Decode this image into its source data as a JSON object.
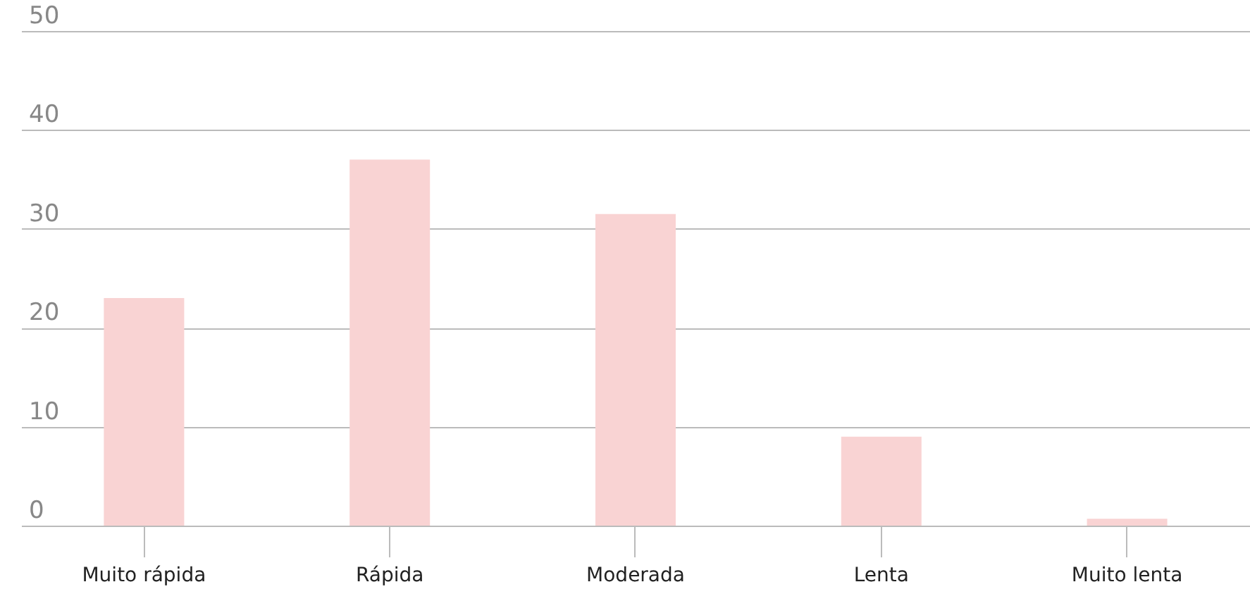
{
  "chart_data": {
    "type": "bar",
    "categories": [
      "Muito rápida",
      "Rápida",
      "Moderada",
      "Lenta",
      "Muito lenta"
    ],
    "values": [
      23,
      37,
      31.5,
      9,
      0.7
    ],
    "color": "#f9d3d3",
    "ylim": [
      0,
      50
    ],
    "yticks": [
      0,
      10,
      20,
      30,
      40,
      50
    ],
    "grid": "y"
  }
}
